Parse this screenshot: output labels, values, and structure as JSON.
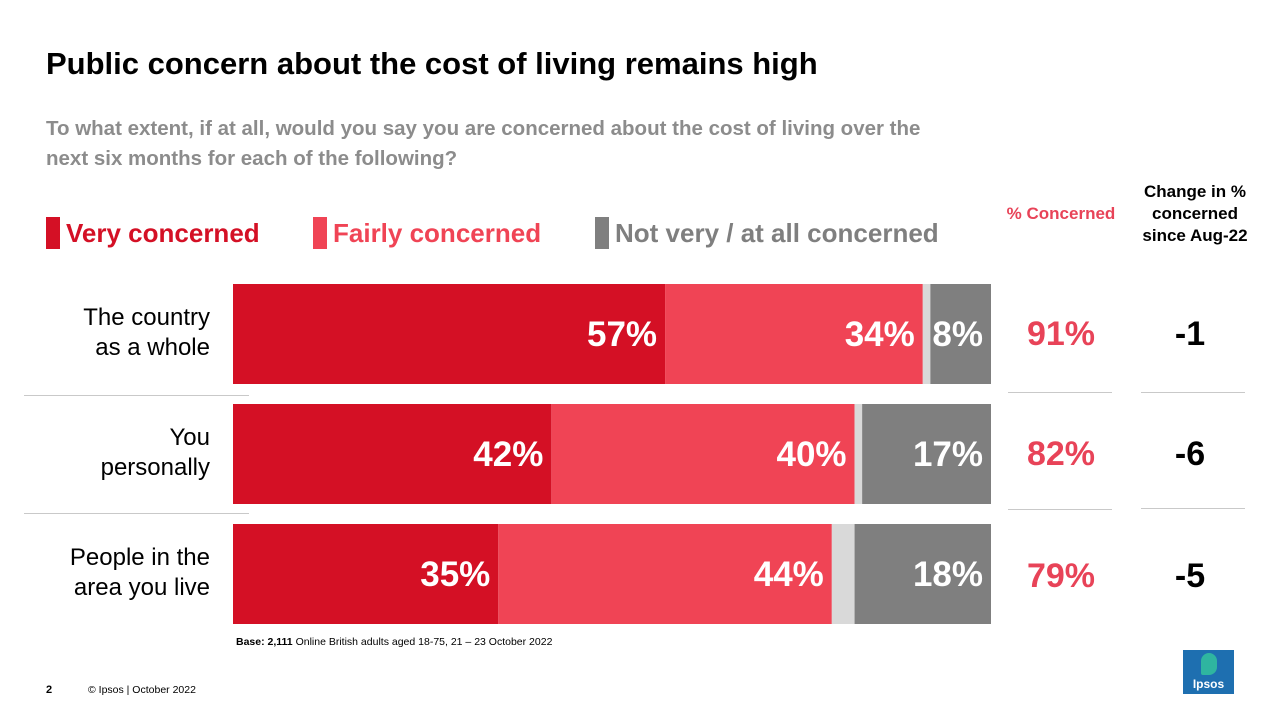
{
  "slide": {
    "title": "Public concern about the cost of living remains high",
    "subtitle": "To what extent, if at all, would you say you are concerned about the cost of living over the next six months for each of the following?",
    "base_label": "Base:",
    "base_value": "2,111",
    "base_text": "Online British adults aged 18-75, 21 – 23 October 2022",
    "page_number": "2",
    "copyright": "© Ipsos | October 2022",
    "logo_text": "Ipsos",
    "header_concerned": "% Concerned",
    "header_change": "Change in % concerned since Aug-22"
  },
  "colors": {
    "very": "#d41025",
    "fairly": "#f04455",
    "dontknow": "#d9d9d9",
    "not": "#7f7f7f",
    "pct_text": "#e84358"
  },
  "legend": [
    {
      "label": "Very concerned",
      "color": "#d41025"
    },
    {
      "label": "Fairly concerned",
      "color": "#f04455"
    },
    {
      "label": "Not very / at all concerned",
      "color": "#7f7f7f"
    }
  ],
  "chart_data": {
    "type": "bar",
    "orientation": "horizontal",
    "stacked": true,
    "categories": [
      "The country as a whole",
      "You personally",
      "People in the area you live"
    ],
    "category_lines": [
      [
        "The country",
        "as a whole"
      ],
      [
        "You",
        "personally"
      ],
      [
        "People in the",
        "area you live"
      ]
    ],
    "series": [
      {
        "name": "Very concerned",
        "values": [
          57,
          42,
          35
        ],
        "labels": [
          "57%",
          "42%",
          "35%"
        ]
      },
      {
        "name": "Fairly concerned",
        "values": [
          34,
          40,
          44
        ],
        "labels": [
          "34%",
          "40%",
          "44%"
        ]
      },
      {
        "name": "",
        "values": [
          1,
          1,
          3
        ],
        "labels": [
          "",
          "",
          ""
        ]
      },
      {
        "name": "Not very / at all concerned",
        "values": [
          8,
          17,
          18
        ],
        "labels": [
          "8%",
          "17%",
          "18%"
        ]
      }
    ],
    "xlim": [
      0,
      100
    ],
    "percent_concerned": [
      "91%",
      "82%",
      "79%"
    ],
    "change_since_aug22": [
      "-1",
      "-6",
      "-5"
    ]
  }
}
